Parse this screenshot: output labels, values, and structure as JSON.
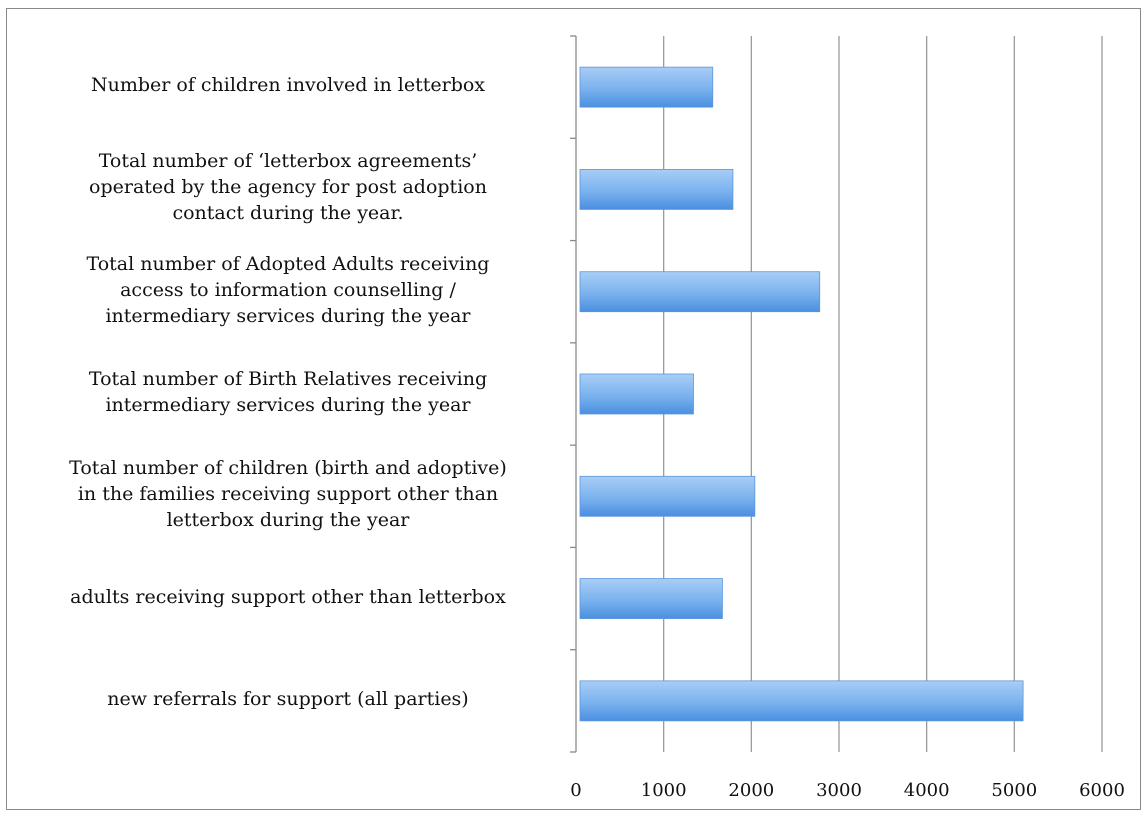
{
  "chart_data": {
    "type": "bar",
    "orientation": "horizontal",
    "categories": [
      "Number of children involved in letterbox",
      "Total number of ‘letterbox agreements’\noperated by the agency for post adoption\ncontact during the year.",
      "Total number of Adopted Adults receiving\naccess to information counselling /\nintermediary services during the year",
      "Total number of Birth Relatives receiving\nintermediary services during the year",
      "Total number of children (birth and adoptive)\nin the families receiving support other than\nletterbox during the year",
      "adults receiving support other than letterbox",
      "new referrals for  support (all parties)"
    ],
    "values": [
      1560,
      1790,
      2780,
      1340,
      2040,
      1670,
      5100
    ],
    "xlim": [
      0,
      6000
    ],
    "xticks": [
      "0",
      "1000",
      "2000",
      "3000",
      "4000",
      "5000",
      "6000"
    ],
    "grid": "vertical",
    "bar_color": "#6aa6ea",
    "legend": "none"
  }
}
